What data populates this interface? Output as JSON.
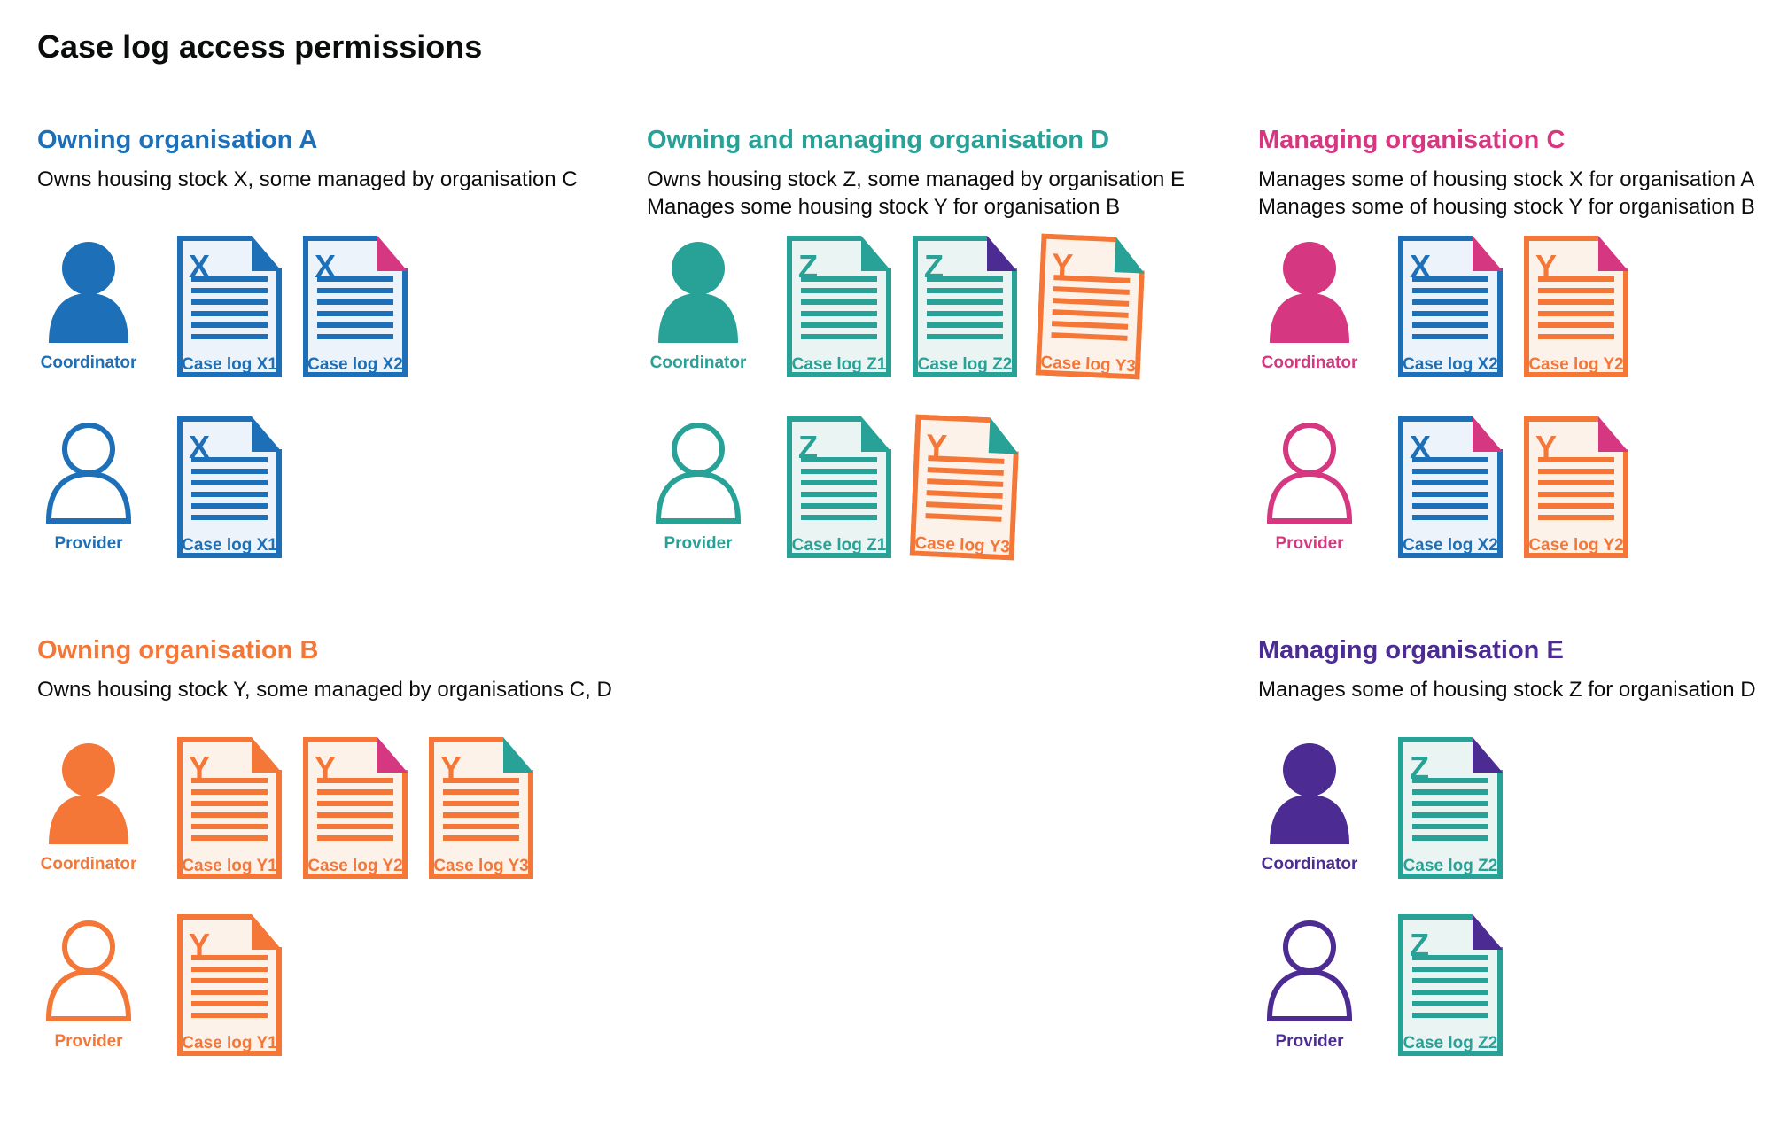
{
  "title": "Case log access permissions",
  "colors": {
    "blue": "#1d70b8",
    "teal": "#28a197",
    "pink": "#d53880",
    "orange": "#f47738",
    "purple": "#4c2c92",
    "text": "#0b0c0c",
    "blue_fill": "#edf3fa",
    "teal_fill": "#eaf4f2",
    "orange_fill": "#fdf2ea"
  },
  "sections": [
    {
      "id": "owning-a",
      "title": "Owning organisation A",
      "color": "blue",
      "description": [
        "Owns housing stock X, some managed by organisation C"
      ],
      "rows": [
        {
          "person": {
            "label": "Coordinator",
            "style": "filled"
          },
          "docs": [
            {
              "letter": "X",
              "label": "Case log X1",
              "doc": "blue",
              "fold": "blue"
            },
            {
              "letter": "X",
              "label": "Case log X2",
              "doc": "blue",
              "fold": "pink"
            }
          ]
        },
        {
          "person": {
            "label": "Provider",
            "style": "outline"
          },
          "docs": [
            {
              "letter": "X",
              "label": "Case log X1",
              "doc": "blue",
              "fold": "blue"
            }
          ]
        }
      ]
    },
    {
      "id": "owning-managing-d",
      "title": "Owning and managing organisation D",
      "color": "teal",
      "description": [
        "Owns housing stock Z, some managed by organisation E",
        "Manages some housing stock Y for organisation B"
      ],
      "rows": [
        {
          "person": {
            "label": "Coordinator",
            "style": "filled"
          },
          "docs": [
            {
              "letter": "Z",
              "label": "Case log Z1",
              "doc": "teal",
              "fold": "teal"
            },
            {
              "letter": "Z",
              "label": "Case log Z2",
              "doc": "teal",
              "fold": "purple"
            },
            {
              "letter": "Y",
              "label": "Case log Y3",
              "doc": "orange",
              "fold": "teal",
              "tilted": true
            }
          ]
        },
        {
          "person": {
            "label": "Provider",
            "style": "outline"
          },
          "docs": [
            {
              "letter": "Z",
              "label": "Case log Z1",
              "doc": "teal",
              "fold": "teal"
            },
            {
              "letter": "Y",
              "label": "Case log Y3",
              "doc": "orange",
              "fold": "teal",
              "tilted": true
            }
          ]
        }
      ]
    },
    {
      "id": "managing-c",
      "title": "Managing organisation C",
      "color": "pink",
      "description": [
        "Manages some of housing stock X for organisation A",
        "Manages some of housing stock Y for organisation B"
      ],
      "rows": [
        {
          "person": {
            "label": "Coordinator",
            "style": "filled"
          },
          "docs": [
            {
              "letter": "X",
              "label": "Case log X2",
              "doc": "blue",
              "fold": "pink"
            },
            {
              "letter": "Y",
              "label": "Case log Y2",
              "doc": "orange",
              "fold": "pink"
            }
          ]
        },
        {
          "person": {
            "label": "Provider",
            "style": "outline"
          },
          "docs": [
            {
              "letter": "X",
              "label": "Case log X2",
              "doc": "blue",
              "fold": "pink"
            },
            {
              "letter": "Y",
              "label": "Case log Y2",
              "doc": "orange",
              "fold": "pink"
            }
          ]
        }
      ]
    },
    {
      "id": "owning-b",
      "title": "Owning organisation B",
      "color": "orange",
      "description": [
        "Owns housing stock Y, some managed by organisations C, D"
      ],
      "rows": [
        {
          "person": {
            "label": "Coordinator",
            "style": "filled"
          },
          "docs": [
            {
              "letter": "Y",
              "label": "Case log Y1",
              "doc": "orange",
              "fold": "orange"
            },
            {
              "letter": "Y",
              "label": "Case log Y2",
              "doc": "orange",
              "fold": "pink"
            },
            {
              "letter": "Y",
              "label": "Case log Y3",
              "doc": "orange",
              "fold": "teal"
            }
          ]
        },
        {
          "person": {
            "label": "Provider",
            "style": "outline"
          },
          "docs": [
            {
              "letter": "Y",
              "label": "Case log Y1",
              "doc": "orange",
              "fold": "orange"
            }
          ]
        }
      ]
    },
    {
      "id": "managing-e",
      "title": "Managing organisation E",
      "color": "purple",
      "description": [
        "Manages some of housing stock Z for organisation D"
      ],
      "rows": [
        {
          "person": {
            "label": "Coordinator",
            "style": "filled"
          },
          "docs": [
            {
              "letter": "Z",
              "label": "Case log Z2",
              "doc": "teal",
              "fold": "purple"
            }
          ]
        },
        {
          "person": {
            "label": "Provider",
            "style": "outline"
          },
          "docs": [
            {
              "letter": "Z",
              "label": "Case log Z2",
              "doc": "teal",
              "fold": "purple"
            }
          ]
        }
      ]
    }
  ]
}
